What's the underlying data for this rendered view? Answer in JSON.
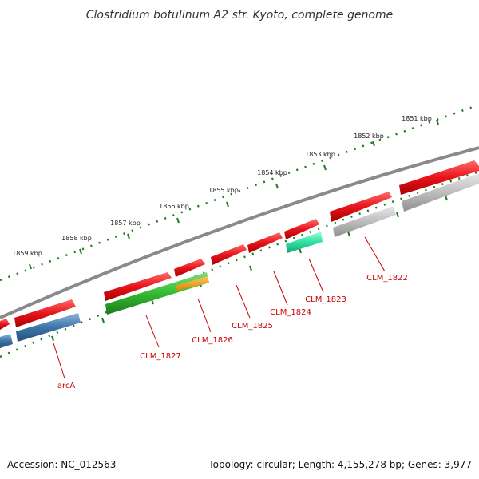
{
  "title": "Clostridium botulinum A2 str. Kyoto, complete genome",
  "footer": {
    "accession": "Accession: NC_012563",
    "summary": "Topology: circular; Length: 4,155,278 bp; Genes: 3,977"
  },
  "ruler": {
    "labels": [
      "1851 kbp",
      "1852 kbp",
      "1853 kbp",
      "1854 kbp",
      "1855 kbp",
      "1856 kbp",
      "1857 kbp",
      "1858 kbp",
      "1859 kbp"
    ]
  },
  "genes": [
    {
      "id": "CLM_1822",
      "label": "CLM_1822"
    },
    {
      "id": "CLM_1823",
      "label": "CLM_1823"
    },
    {
      "id": "CLM_1824",
      "label": "CLM_1824"
    },
    {
      "id": "CLM_1825",
      "label": "CLM_1825"
    },
    {
      "id": "CLM_1826",
      "label": "CLM_1826"
    },
    {
      "id": "CLM_1827",
      "label": "CLM_1827"
    },
    {
      "id": "arcA",
      "label": "arcA"
    }
  ],
  "colors": {
    "cds_red": "#e8141a",
    "rna_green": "#33bb33",
    "orange": "#f39c12",
    "teal": "#2ee0a0",
    "gray": "#bdbdbd",
    "blue": "#3d75a8",
    "backbone": "#8a8a8a",
    "tick_green": "#1f7a1f",
    "label_red": "#cc0000"
  }
}
